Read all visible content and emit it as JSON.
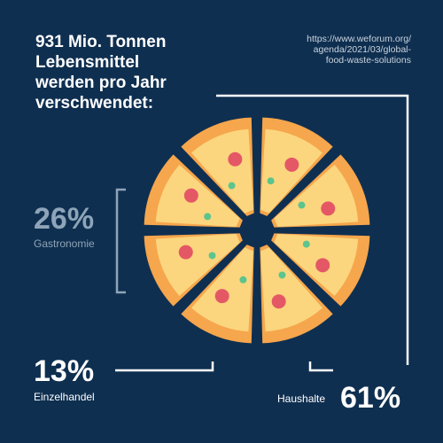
{
  "title_lines": [
    "931 Mio. Tonnen",
    "Lebensmittel",
    "werden pro Jahr",
    "verschwendet:"
  ],
  "source_lines": [
    "https://www.weforum.org/",
    "agenda/2021/03/global-",
    "food-waste-solutions"
  ],
  "chart_data": {
    "type": "pie",
    "categories": [
      "Haushalte",
      "Gastronomie",
      "Einzelhandel"
    ],
    "values": [
      61,
      26,
      13
    ],
    "labels": [
      "61%",
      "26%",
      "13%"
    ],
    "slice_count": 8,
    "colors": {
      "background": "#0f2f50",
      "crust": "#f6a64c",
      "cheese": "#fbd67e",
      "pepperoni": "#e45866",
      "herb": "#5cc48d",
      "bracket_gastronomie": "#8ea4b8",
      "bracket_other": "#ffffff"
    }
  }
}
